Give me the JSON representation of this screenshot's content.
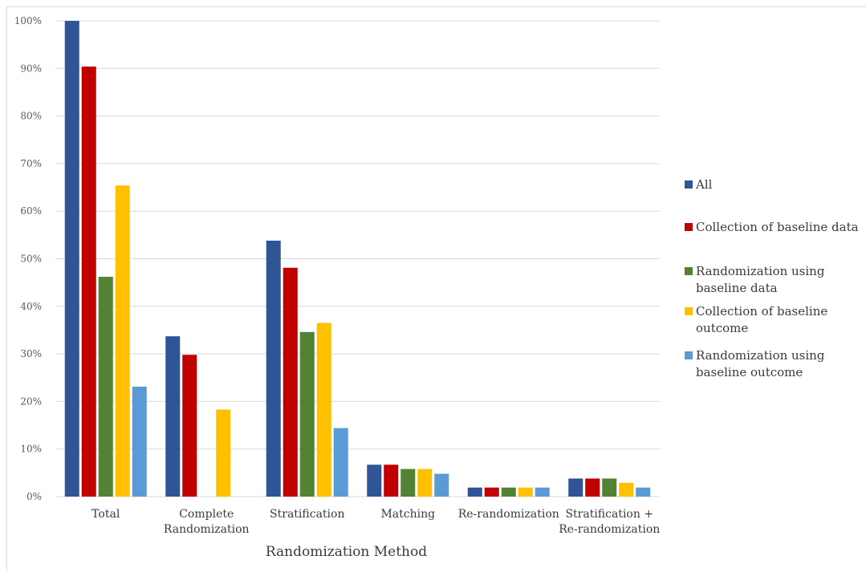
{
  "chart_data": {
    "type": "bar",
    "xlabel": "Randomization Method",
    "ylabel": "",
    "ylim": [
      0,
      100
    ],
    "yticks": [
      "0%",
      "10%",
      "20%",
      "30%",
      "40%",
      "50%",
      "60%",
      "70%",
      "80%",
      "90%",
      "100%"
    ],
    "categories": [
      [
        "Total"
      ],
      [
        "Complete",
        "Randomization"
      ],
      [
        "Stratification"
      ],
      [
        "Matching"
      ],
      [
        "Re-randomization"
      ],
      [
        "Stratification +",
        "Re-randomization"
      ]
    ],
    "series": [
      {
        "name": "All",
        "color": "#2f5597",
        "values": [
          100,
          33.7,
          53.8,
          6.7,
          1.9,
          3.8
        ]
      },
      {
        "name": "Collection of baseline data",
        "color": "#c00000",
        "values": [
          90.4,
          29.8,
          48.1,
          6.7,
          1.9,
          3.8
        ]
      },
      {
        "name": "Randomization using baseline data",
        "color": "#548235",
        "values": [
          46.2,
          0,
          34.6,
          5.8,
          1.9,
          3.8
        ]
      },
      {
        "name": "Collection of baseline outcome",
        "color": "#ffc000",
        "values": [
          65.4,
          18.3,
          36.5,
          5.8,
          1.9,
          2.9
        ]
      },
      {
        "name": "Randomization using baseline outcome",
        "color": "#5b9bd5",
        "values": [
          23.1,
          0,
          14.4,
          4.8,
          1.9,
          1.9
        ]
      }
    ],
    "legend_position": "right",
    "grid": true
  },
  "legend": {
    "labels": [
      [
        "All"
      ],
      [
        "Collection of baseline data"
      ],
      [
        "Randomization using",
        "baseline data"
      ],
      [
        "Collection of baseline",
        "outcome"
      ],
      [
        "Randomization using",
        "baseline outcome"
      ]
    ]
  }
}
